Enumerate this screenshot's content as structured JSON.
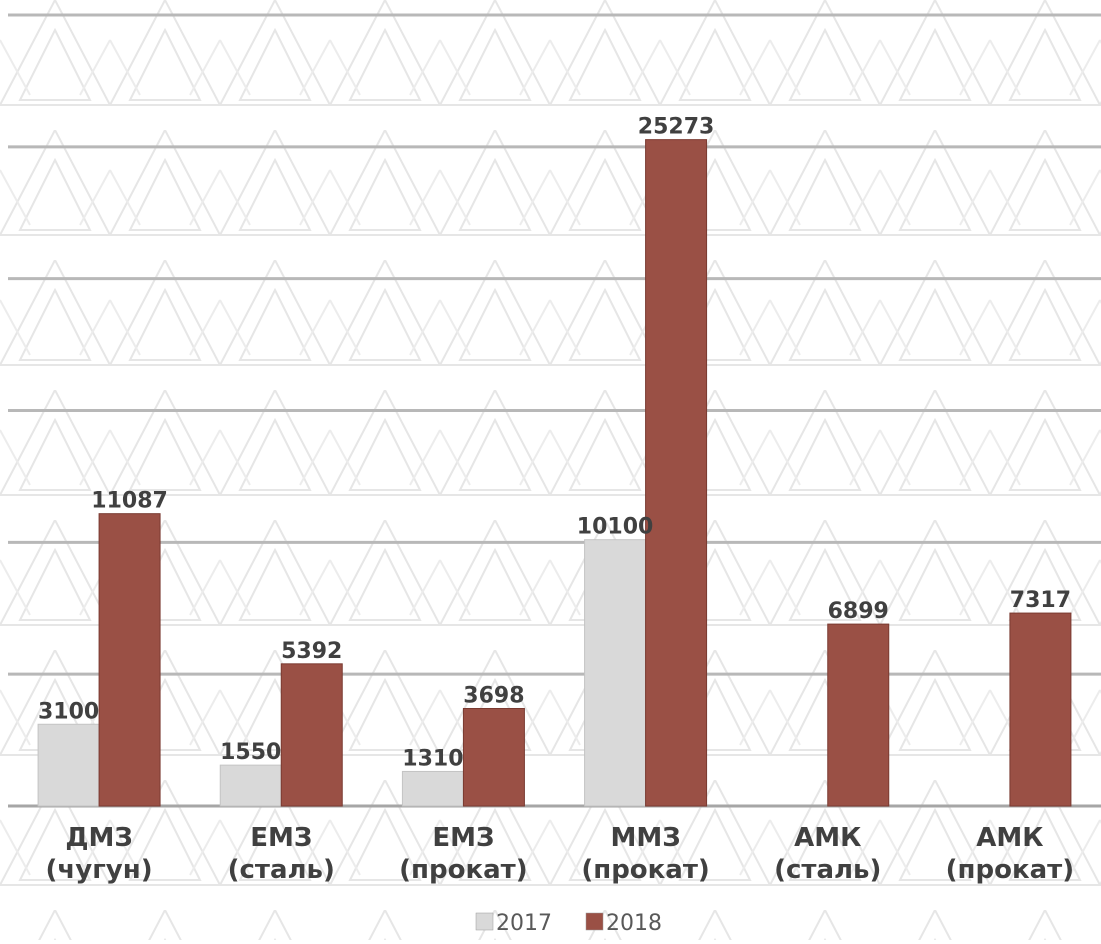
{
  "chart_data": {
    "type": "bar",
    "categories": [
      [
        "ДМЗ",
        "(чугун)"
      ],
      [
        "ЕМЗ",
        "(сталь)"
      ],
      [
        "ЕМЗ",
        "(прокат)"
      ],
      [
        "ММЗ",
        "(прокат)"
      ],
      [
        "АМК",
        "(сталь)"
      ],
      [
        "АМК",
        "(прокат)"
      ]
    ],
    "series": [
      {
        "name": "2017",
        "values": [
          3100,
          1550,
          1310,
          10100,
          null,
          null
        ],
        "color": "#d9d9d9"
      },
      {
        "name": "2018",
        "values": [
          11087,
          5392,
          3698,
          25273,
          6899,
          7317
        ],
        "color": "#9a5045"
      }
    ],
    "ylim": [
      0,
      30000
    ],
    "grid": true,
    "legend": "bottom-center",
    "colors": {
      "gridline": "#b8b8b8",
      "axis": "#a6a6a6",
      "label": "#404040",
      "pattern": "#e6e6e6"
    }
  }
}
